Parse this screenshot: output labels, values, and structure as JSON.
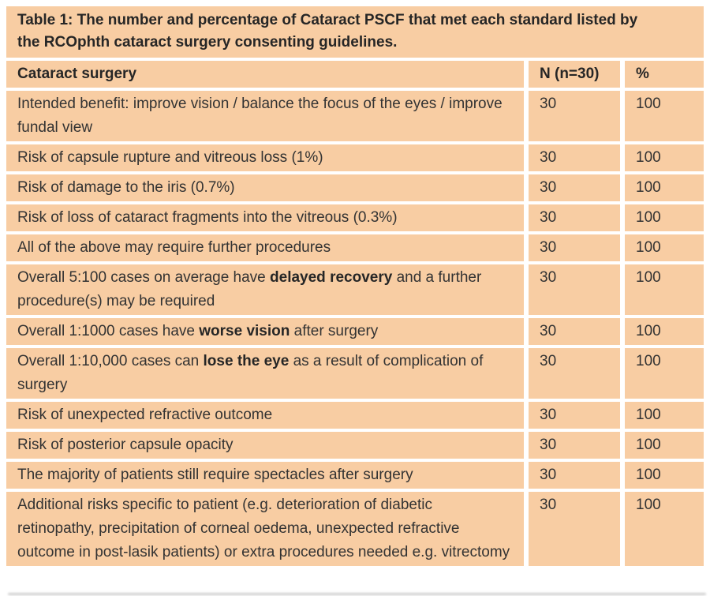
{
  "figure": {
    "title_lines": [
      "Table 1: The number and percentage of Cataract PSCF that met each standard listed by",
      "the RCOphth cataract surgery consenting guidelines."
    ],
    "columns": [
      "Cataract surgery",
      "N (n=30)",
      "%"
    ],
    "rows": [
      {
        "label": [
          {
            "t": "Intended benefit: improve vision / balance the focus of the eyes / improve fundal view"
          }
        ],
        "n": "30",
        "pct": "100"
      },
      {
        "label": [
          {
            "t": "Risk of capsule rupture and vitreous loss (1%)"
          }
        ],
        "n": "30",
        "pct": "100"
      },
      {
        "label": [
          {
            "t": "Risk of damage to the iris (0.7%)"
          }
        ],
        "n": "30",
        "pct": "100"
      },
      {
        "label": [
          {
            "t": "Risk of loss of cataract fragments into the vitreous (0.3%)"
          }
        ],
        "n": "30",
        "pct": "100"
      },
      {
        "label": [
          {
            "t": "All of the above may require further procedures"
          }
        ],
        "n": "30",
        "pct": "100"
      },
      {
        "label": [
          {
            "t": "Overall 5:100 cases on average have "
          },
          {
            "t": "delayed recovery",
            "b": true
          },
          {
            "t": " and a further procedure(s) may be required"
          }
        ],
        "n": "30",
        "pct": "100"
      },
      {
        "label": [
          {
            "t": "Overall 1:1000 cases have "
          },
          {
            "t": "worse vision",
            "b": true
          },
          {
            "t": " after surgery"
          }
        ],
        "n": "30",
        "pct": "100"
      },
      {
        "label": [
          {
            "t": "Overall 1:10,000 cases can "
          },
          {
            "t": "lose the eye",
            "b": true
          },
          {
            "t": " as a result of complication of surgery"
          }
        ],
        "n": "30",
        "pct": "100"
      },
      {
        "label": [
          {
            "t": "Risk of unexpected refractive outcome"
          }
        ],
        "n": "30",
        "pct": "100"
      },
      {
        "label": [
          {
            "t": "Risk of posterior capsule opacity"
          }
        ],
        "n": "30",
        "pct": "100"
      },
      {
        "label": [
          {
            "t": "The majority of patients still require spectacles after surgery"
          }
        ],
        "n": "30",
        "pct": "100"
      },
      {
        "label": [
          {
            "t": "Additional risks specific to patient (e.g. deterioration of diabetic retinopathy, precipitation of corneal oedema, unexpected refractive outcome in post-lasik patients) or extra procedures needed e.g. vitrectomy"
          }
        ],
        "n": "30",
        "pct": "100"
      }
    ],
    "colors": {
      "cell_bg": "#f8cda3",
      "page_bg": "#ffffff",
      "text": "#333333",
      "bold_text": "#262626",
      "shadow": "#c2c2c2"
    }
  }
}
